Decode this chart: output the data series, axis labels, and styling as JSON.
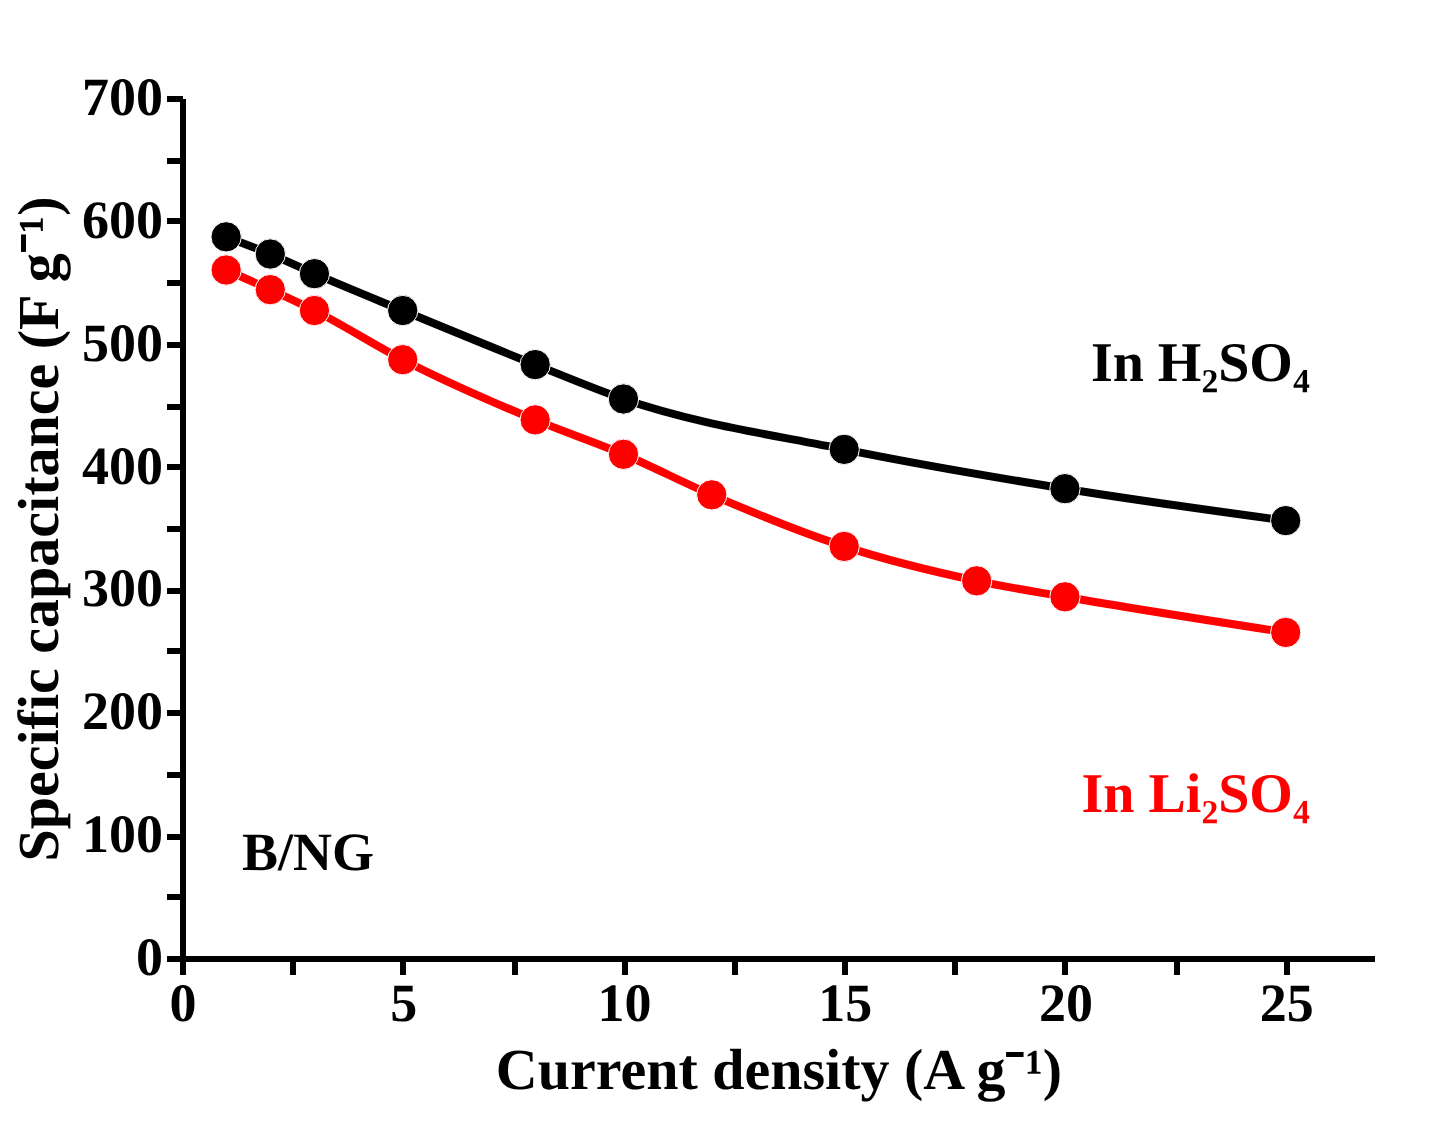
{
  "chart_data": {
    "type": "line",
    "xlabel": "Current density (A g⁻¹)",
    "ylabel": "Specific capacitance (F g⁻¹)",
    "xlim": [
      0,
      27
    ],
    "ylim": [
      0,
      700
    ],
    "xticks": [
      0,
      {
        "value": 2.5,
        "label": null
      },
      5,
      {
        "value": 7.5,
        "label": null
      },
      10,
      {
        "value": 12.5,
        "label": null
      },
      15,
      {
        "value": 17.5,
        "label": null
      },
      20,
      {
        "value": 22.5,
        "label": null
      },
      25
    ],
    "yticks": [
      0,
      {
        "value": 50,
        "label": null
      },
      100,
      {
        "value": 150,
        "label": null
      },
      200,
      {
        "value": 250,
        "label": null
      },
      300,
      {
        "value": 350,
        "label": null
      },
      400,
      {
        "value": 450,
        "label": null
      },
      500,
      {
        "value": 550,
        "label": null
      },
      600,
      {
        "value": 650,
        "label": null
      },
      700
    ],
    "series": [
      {
        "name": "In H₂SO₄",
        "color": "#000000",
        "x": [
          1,
          2,
          3,
          5,
          8,
          10,
          15,
          20,
          25
        ],
        "values": [
          587,
          573,
          557,
          527,
          483,
          455,
          414,
          382,
          356
        ]
      },
      {
        "name": "In Li₂SO₄",
        "color": "#ff0000",
        "x": [
          1,
          2,
          3,
          5,
          8,
          10,
          12,
          15,
          18,
          20,
          25
        ],
        "values": [
          560,
          544,
          527,
          487,
          438,
          410,
          377,
          335,
          307,
          294,
          265
        ]
      }
    ],
    "annotations": [
      "B/NG"
    ],
    "marker": "circle",
    "line_style": "solid",
    "grid": false,
    "legend": false
  }
}
